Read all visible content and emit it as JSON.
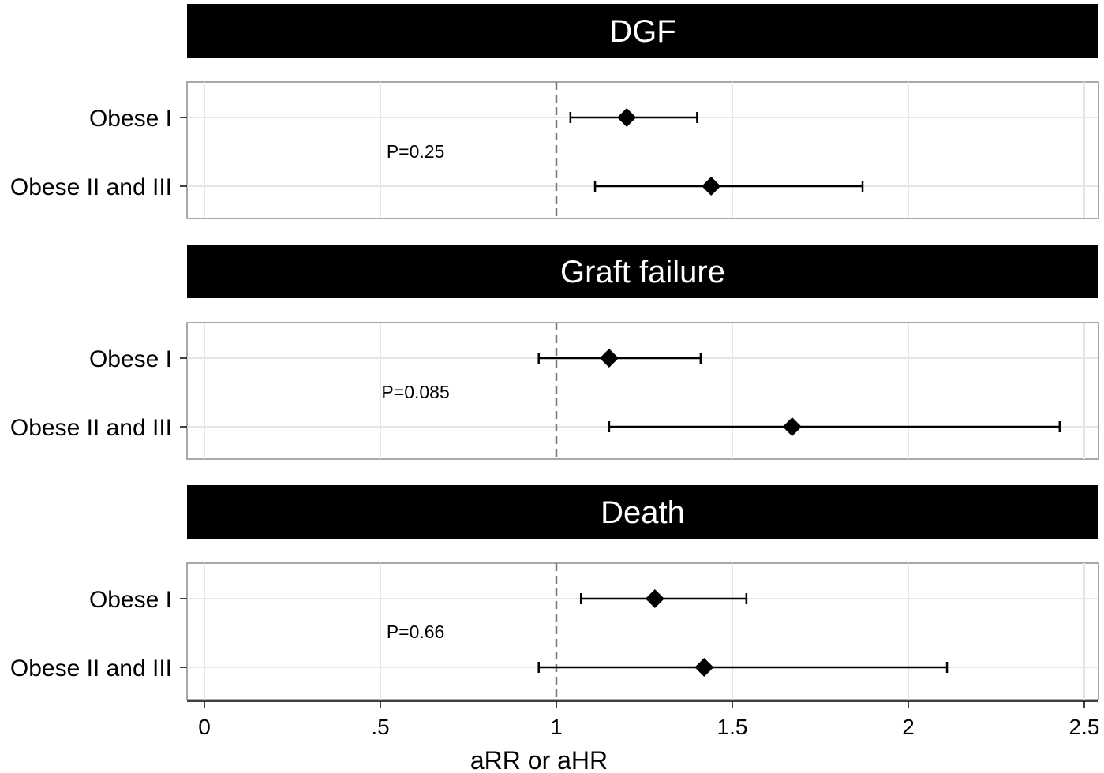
{
  "chart_data": [
    {
      "type": "forest",
      "title": "DGF",
      "annotation": "P=0.25",
      "categories": [
        "Obese I",
        "Obese II and III"
      ],
      "estimates": [
        1.2,
        1.44
      ],
      "lower": [
        1.04,
        1.11
      ],
      "upper": [
        1.4,
        1.87
      ],
      "reference_line": 1
    },
    {
      "type": "forest",
      "title": "Graft failure",
      "annotation": "P=0.085",
      "categories": [
        "Obese I",
        "Obese II and III"
      ],
      "estimates": [
        1.15,
        1.67
      ],
      "lower": [
        0.95,
        1.15
      ],
      "upper": [
        1.41,
        2.43
      ],
      "reference_line": 1
    },
    {
      "type": "forest",
      "title": "Death",
      "annotation": "P=0.66",
      "categories": [
        "Obese I",
        "Obese II and III"
      ],
      "estimates": [
        1.28,
        1.42
      ],
      "lower": [
        1.07,
        0.95
      ],
      "upper": [
        1.54,
        2.11
      ],
      "reference_line": 1
    }
  ],
  "x_axis": {
    "label": "aRR or aHR",
    "ticks": [
      0,
      0.5,
      1,
      1.5,
      2,
      2.5
    ],
    "tick_labels": [
      "0",
      ".5",
      "1",
      "1.5",
      "2",
      "2.5"
    ],
    "range": [
      -0.05,
      2.55
    ]
  },
  "colors": {
    "header_bg": "#000000",
    "header_text": "#ffffff",
    "grid": "#e6e6e6",
    "frame": "#8c8c8c",
    "reference_line": "#7a7a7a",
    "marker": "#000000"
  }
}
